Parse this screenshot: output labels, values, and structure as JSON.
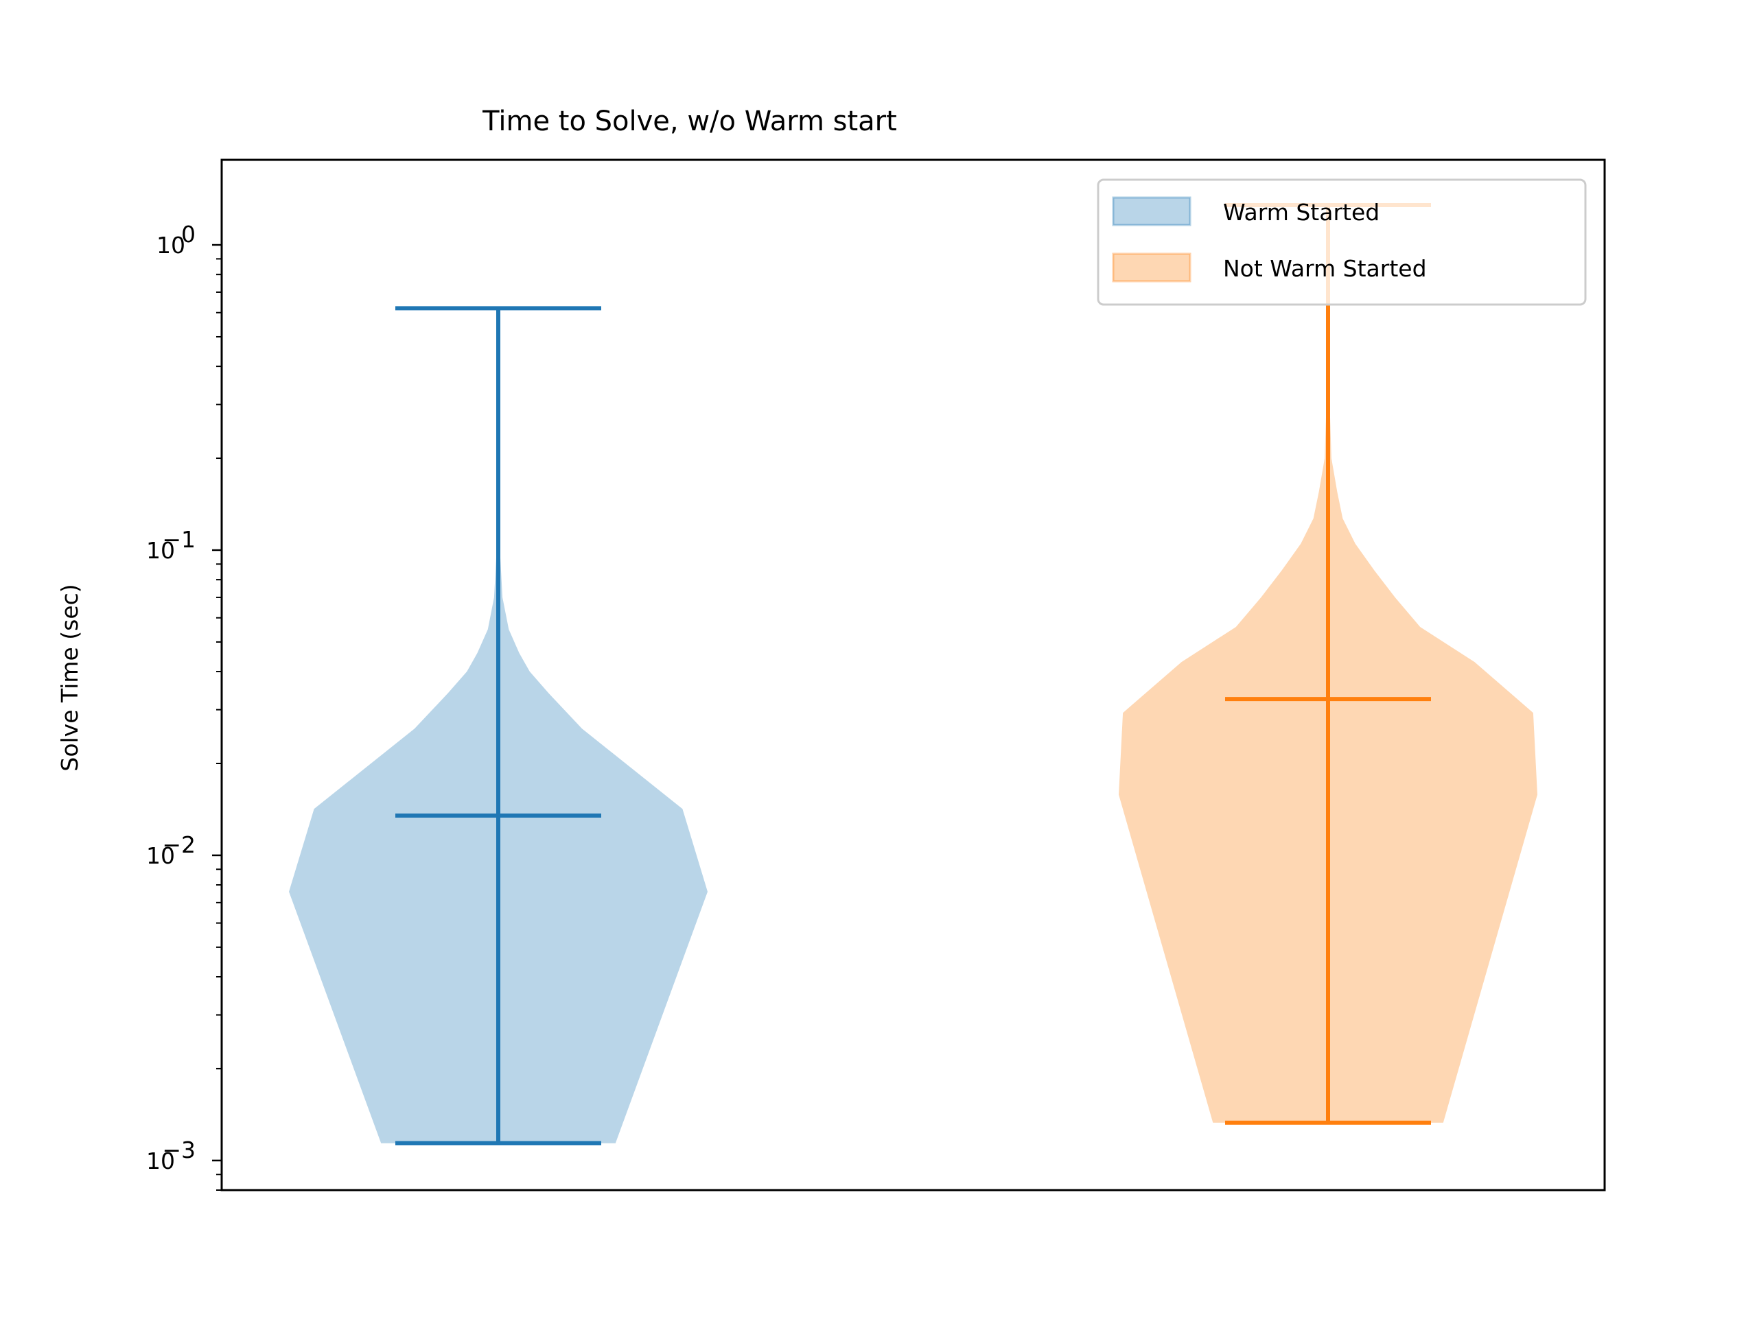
{
  "chart_data": {
    "type": "violin",
    "title": "Time to Solve, w/o Warm start",
    "xlabel": "",
    "ylabel": "Solve Time (sec)",
    "yscale": "log",
    "ylim": [
      0.0008,
      1.9
    ],
    "y_ticks": [
      {
        "value": 0.001,
        "base": "10",
        "exp": "−3"
      },
      {
        "value": 0.01,
        "base": "10",
        "exp": "−2"
      },
      {
        "value": 0.1,
        "base": "10",
        "exp": "−1"
      },
      {
        "value": 1,
        "base": "10",
        "exp": "0"
      }
    ],
    "legend_position": "upper right",
    "grid": false,
    "series": [
      {
        "name": "Warm Started",
        "color": "#1f77b4",
        "fill": "#b9d5e8",
        "min": 0.00114,
        "max": 0.62,
        "mean": 0.0135,
        "density": [
          [
            0.00114,
            0.28
          ],
          [
            0.0076,
            0.5
          ],
          [
            0.0142,
            0.44
          ],
          [
            0.026,
            0.2
          ],
          [
            0.034,
            0.12
          ],
          [
            0.04,
            0.075
          ],
          [
            0.046,
            0.05
          ],
          [
            0.055,
            0.025
          ],
          [
            0.07,
            0.01
          ],
          [
            0.1,
            0.004
          ]
        ]
      },
      {
        "name": "Not Warm Started",
        "color": "#ff7f0e",
        "fill": "#fed7b3",
        "min": 0.00133,
        "max": 1.35,
        "mean": 0.0325,
        "density": [
          [
            0.00133,
            0.275
          ],
          [
            0.0158,
            0.5
          ],
          [
            0.0293,
            0.49
          ],
          [
            0.043,
            0.35
          ],
          [
            0.056,
            0.22
          ],
          [
            0.07,
            0.16
          ],
          [
            0.086,
            0.11
          ],
          [
            0.105,
            0.065
          ],
          [
            0.127,
            0.035
          ],
          [
            0.155,
            0.022
          ],
          [
            0.2,
            0.008
          ],
          [
            0.3,
            0.004
          ]
        ]
      }
    ]
  }
}
